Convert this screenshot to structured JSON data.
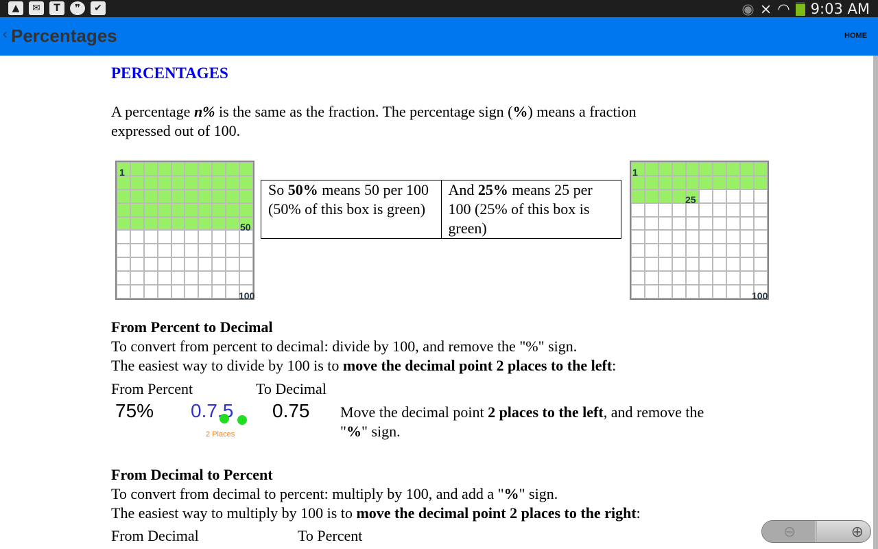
{
  "status": {
    "time": "9:03 AM",
    "left_icons": [
      "gallery-icon",
      "email-icon",
      "nytimes-icon",
      "hangouts-icon",
      "store-icon"
    ],
    "right_icons": [
      "eye-icon",
      "mute-icon",
      "wifi-icon",
      "battery-icon"
    ]
  },
  "appbar": {
    "back": "‹",
    "title": "Percentages",
    "home": "HOME",
    "color": "#0077ee"
  },
  "heading": "PERCENTAGES",
  "intro": {
    "a": "A percentage ",
    "n": "n%",
    "b": " is the same as the fraction. The percentage sign (",
    "pct": "%",
    "c": ") means a fraction",
    "d": "expressed out of 100."
  },
  "grid_left": {
    "filled": 50,
    "total": 100,
    "labels": [
      "1",
      "50",
      "100"
    ]
  },
  "grid_right": {
    "filled": 25,
    "total": 100,
    "labels": [
      "1",
      "25",
      "100"
    ]
  },
  "box": {
    "c1a": "So ",
    "c1b": "50%",
    "c1c": " means 50 per 100 (50% of this box is green)",
    "c2a": "And ",
    "c2b": "25%",
    "c2c": " means 25 per 100 (25% of this box is green)"
  },
  "p2d": {
    "title": "From Percent to Decimal",
    "l1": "To convert from percent to decimal: divide by 100, and remove the \"%\" sign.",
    "l2a": "The easiest way to divide by 100 is to ",
    "l2b": "move the decimal point 2 places to the left",
    "l2c": ":",
    "from": "From Percent",
    "to": "To Decimal",
    "ex_from": "75%",
    "ex_mid": "0.7.5",
    "ex_places": "2 Places",
    "ex_to": "0.75",
    "note_a": "Move the decimal point ",
    "note_b": "2 places to the left",
    "note_c": ", and remove the",
    "note_d": "\"",
    "note_e": "%",
    "note_f": "\" sign."
  },
  "d2p": {
    "title": "From Decimal to Percent",
    "l1a": "To convert from decimal to percent: multiply by 100, and add a \"",
    "l1b": "%",
    "l1c": "\" sign.",
    "l2a": "The easiest way to multiply by 100 is to ",
    "l2b": "move the decimal point 2 places to the right",
    "l2c": ":",
    "from": "From Decimal",
    "to": "To Percent"
  },
  "zoom": {
    "out": "⊖",
    "in": "⊕"
  }
}
